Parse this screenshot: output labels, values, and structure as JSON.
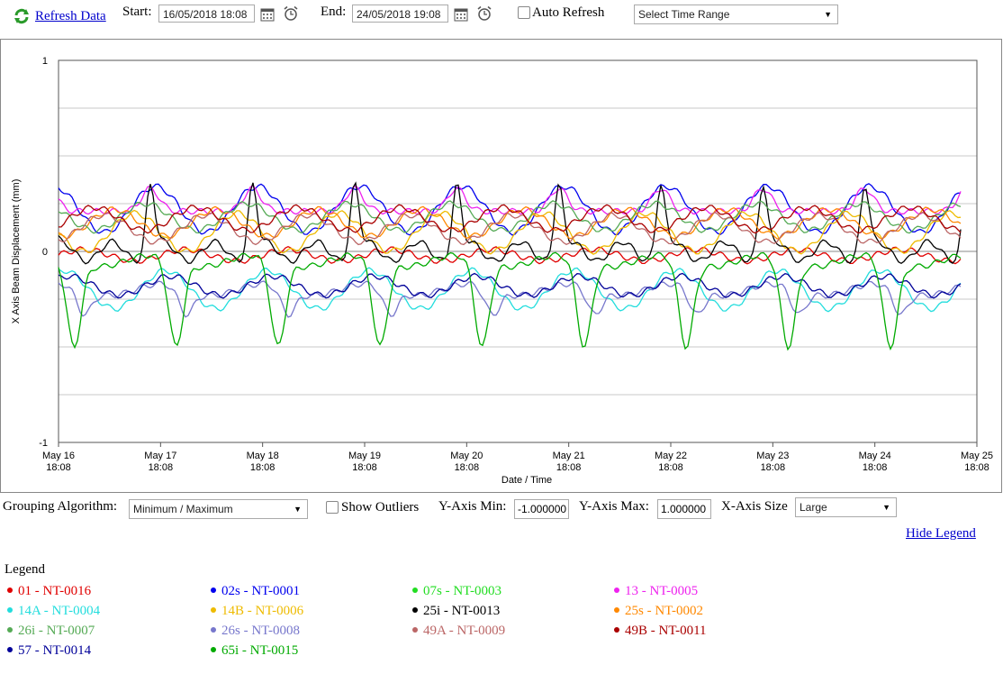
{
  "toolbar": {
    "refresh_label": "Refresh Data",
    "start_label": "Start:",
    "start_value": "16/05/2018 18:08",
    "end_label": "End:",
    "end_value": "24/05/2018 19:08",
    "auto_refresh_label": "Auto Refresh",
    "time_range_value": "Select Time Range"
  },
  "controls": {
    "grouping_label": "Grouping Algorithm:",
    "grouping_value": "Minimum / Maximum",
    "show_outliers_label": "Show Outliers",
    "ymin_label": "Y-Axis Min:",
    "ymin_value": "-1.000000",
    "ymax_label": "Y-Axis Max:",
    "ymax_value": "1.000000",
    "xsize_label": "X-Axis Size",
    "xsize_value": "Large",
    "hide_legend": "Hide Legend"
  },
  "legend": {
    "title": "Legend",
    "items": [
      {
        "label": "01 - NT-0016",
        "color": "#e00000"
      },
      {
        "label": "02s - NT-0001",
        "color": "#0000ee"
      },
      {
        "label": "07s - NT-0003",
        "color": "#22dd22"
      },
      {
        "label": "13 - NT-0005",
        "color": "#ee22ee"
      },
      {
        "label": "14A - NT-0004",
        "color": "#22dddd"
      },
      {
        "label": "14B - NT-0006",
        "color": "#eebb00"
      },
      {
        "label": "25i - NT-0013",
        "color": "#000000"
      },
      {
        "label": "25s - NT-0002",
        "color": "#ff8800"
      },
      {
        "label": "26i - NT-0007",
        "color": "#55aa55"
      },
      {
        "label": "26s - NT-0008",
        "color": "#7777cc"
      },
      {
        "label": "49A - NT-0009",
        "color": "#bb6666"
      },
      {
        "label": "49B - NT-0011",
        "color": "#aa0000"
      },
      {
        "label": "57 - NT-0014",
        "color": "#000099"
      },
      {
        "label": "65i - NT-0015",
        "color": "#00aa00"
      }
    ]
  },
  "chart_data": {
    "type": "line",
    "ylabel": "X Axis Beam Displacement (mm)",
    "xlabel": "Date / Time",
    "ylim": [
      -1,
      1
    ],
    "y_ticks": [
      "1",
      "0",
      "-1"
    ],
    "x_ticks": [
      "May 16\n18:08",
      "May 17\n18:08",
      "May 18\n18:08",
      "May 19\n18:08",
      "May 20\n18:08",
      "May 21\n18:08",
      "May 22\n18:08",
      "May 23\n18:08",
      "May 24\n18:08",
      "May 25\n18:08"
    ],
    "x_start": "2018-05-16 18:08",
    "x_end": "2018-05-25 18:08",
    "grid": true,
    "series": [
      {
        "name": "01 - NT-0016",
        "color": "#e00000",
        "base": -0.02,
        "amp": 0.03,
        "phase": 0.0,
        "shape": "sine"
      },
      {
        "name": "02s - NT-0001",
        "color": "#0000ee",
        "base": 0.22,
        "amp": 0.12,
        "phase": 0.3,
        "shape": "sine"
      },
      {
        "name": "07s - NT-0003",
        "color": "#22dd22",
        "base": -0.05,
        "amp": 0.0,
        "phase": 0.0,
        "shape": "flat"
      },
      {
        "name": "13 - NT-0005",
        "color": "#ee22ee",
        "base": 0.25,
        "amp": 0.12,
        "phase": 0.6,
        "shape": "peak"
      },
      {
        "name": "14A - NT-0004",
        "color": "#22dddd",
        "base": -0.2,
        "amp": 0.1,
        "phase": 0.2,
        "shape": "sine"
      },
      {
        "name": "14B - NT-0006",
        "color": "#eebb00",
        "base": 0.1,
        "amp": 0.1,
        "phase": 0.5,
        "shape": "sine"
      },
      {
        "name": "25i - NT-0013",
        "color": "#000000",
        "base": 0.1,
        "amp": 0.35,
        "phase": 0.1,
        "shape": "spike"
      },
      {
        "name": "25s - NT-0002",
        "color": "#ff8800",
        "base": 0.15,
        "amp": 0.07,
        "phase": 0.7,
        "shape": "sine"
      },
      {
        "name": "26i - NT-0007",
        "color": "#55aa55",
        "base": 0.18,
        "amp": 0.07,
        "phase": 0.4,
        "shape": "sine"
      },
      {
        "name": "26s - NT-0008",
        "color": "#7777cc",
        "base": -0.2,
        "amp": 0.13,
        "phase": 0.25,
        "shape": "dip"
      },
      {
        "name": "49A - NT-0009",
        "color": "#bb6666",
        "base": 0.12,
        "amp": 0.07,
        "phase": 0.8,
        "shape": "sine"
      },
      {
        "name": "49B - NT-0011",
        "color": "#aa0000",
        "base": 0.17,
        "amp": 0.06,
        "phase": 0.9,
        "shape": "sine"
      },
      {
        "name": "57 - NT-0014",
        "color": "#000099",
        "base": -0.18,
        "amp": 0.05,
        "phase": 0.15,
        "shape": "sine"
      },
      {
        "name": "65i - NT-0015",
        "color": "#00aa00",
        "base": -0.05,
        "amp": 0.45,
        "phase": 0.35,
        "shape": "dip"
      }
    ]
  }
}
